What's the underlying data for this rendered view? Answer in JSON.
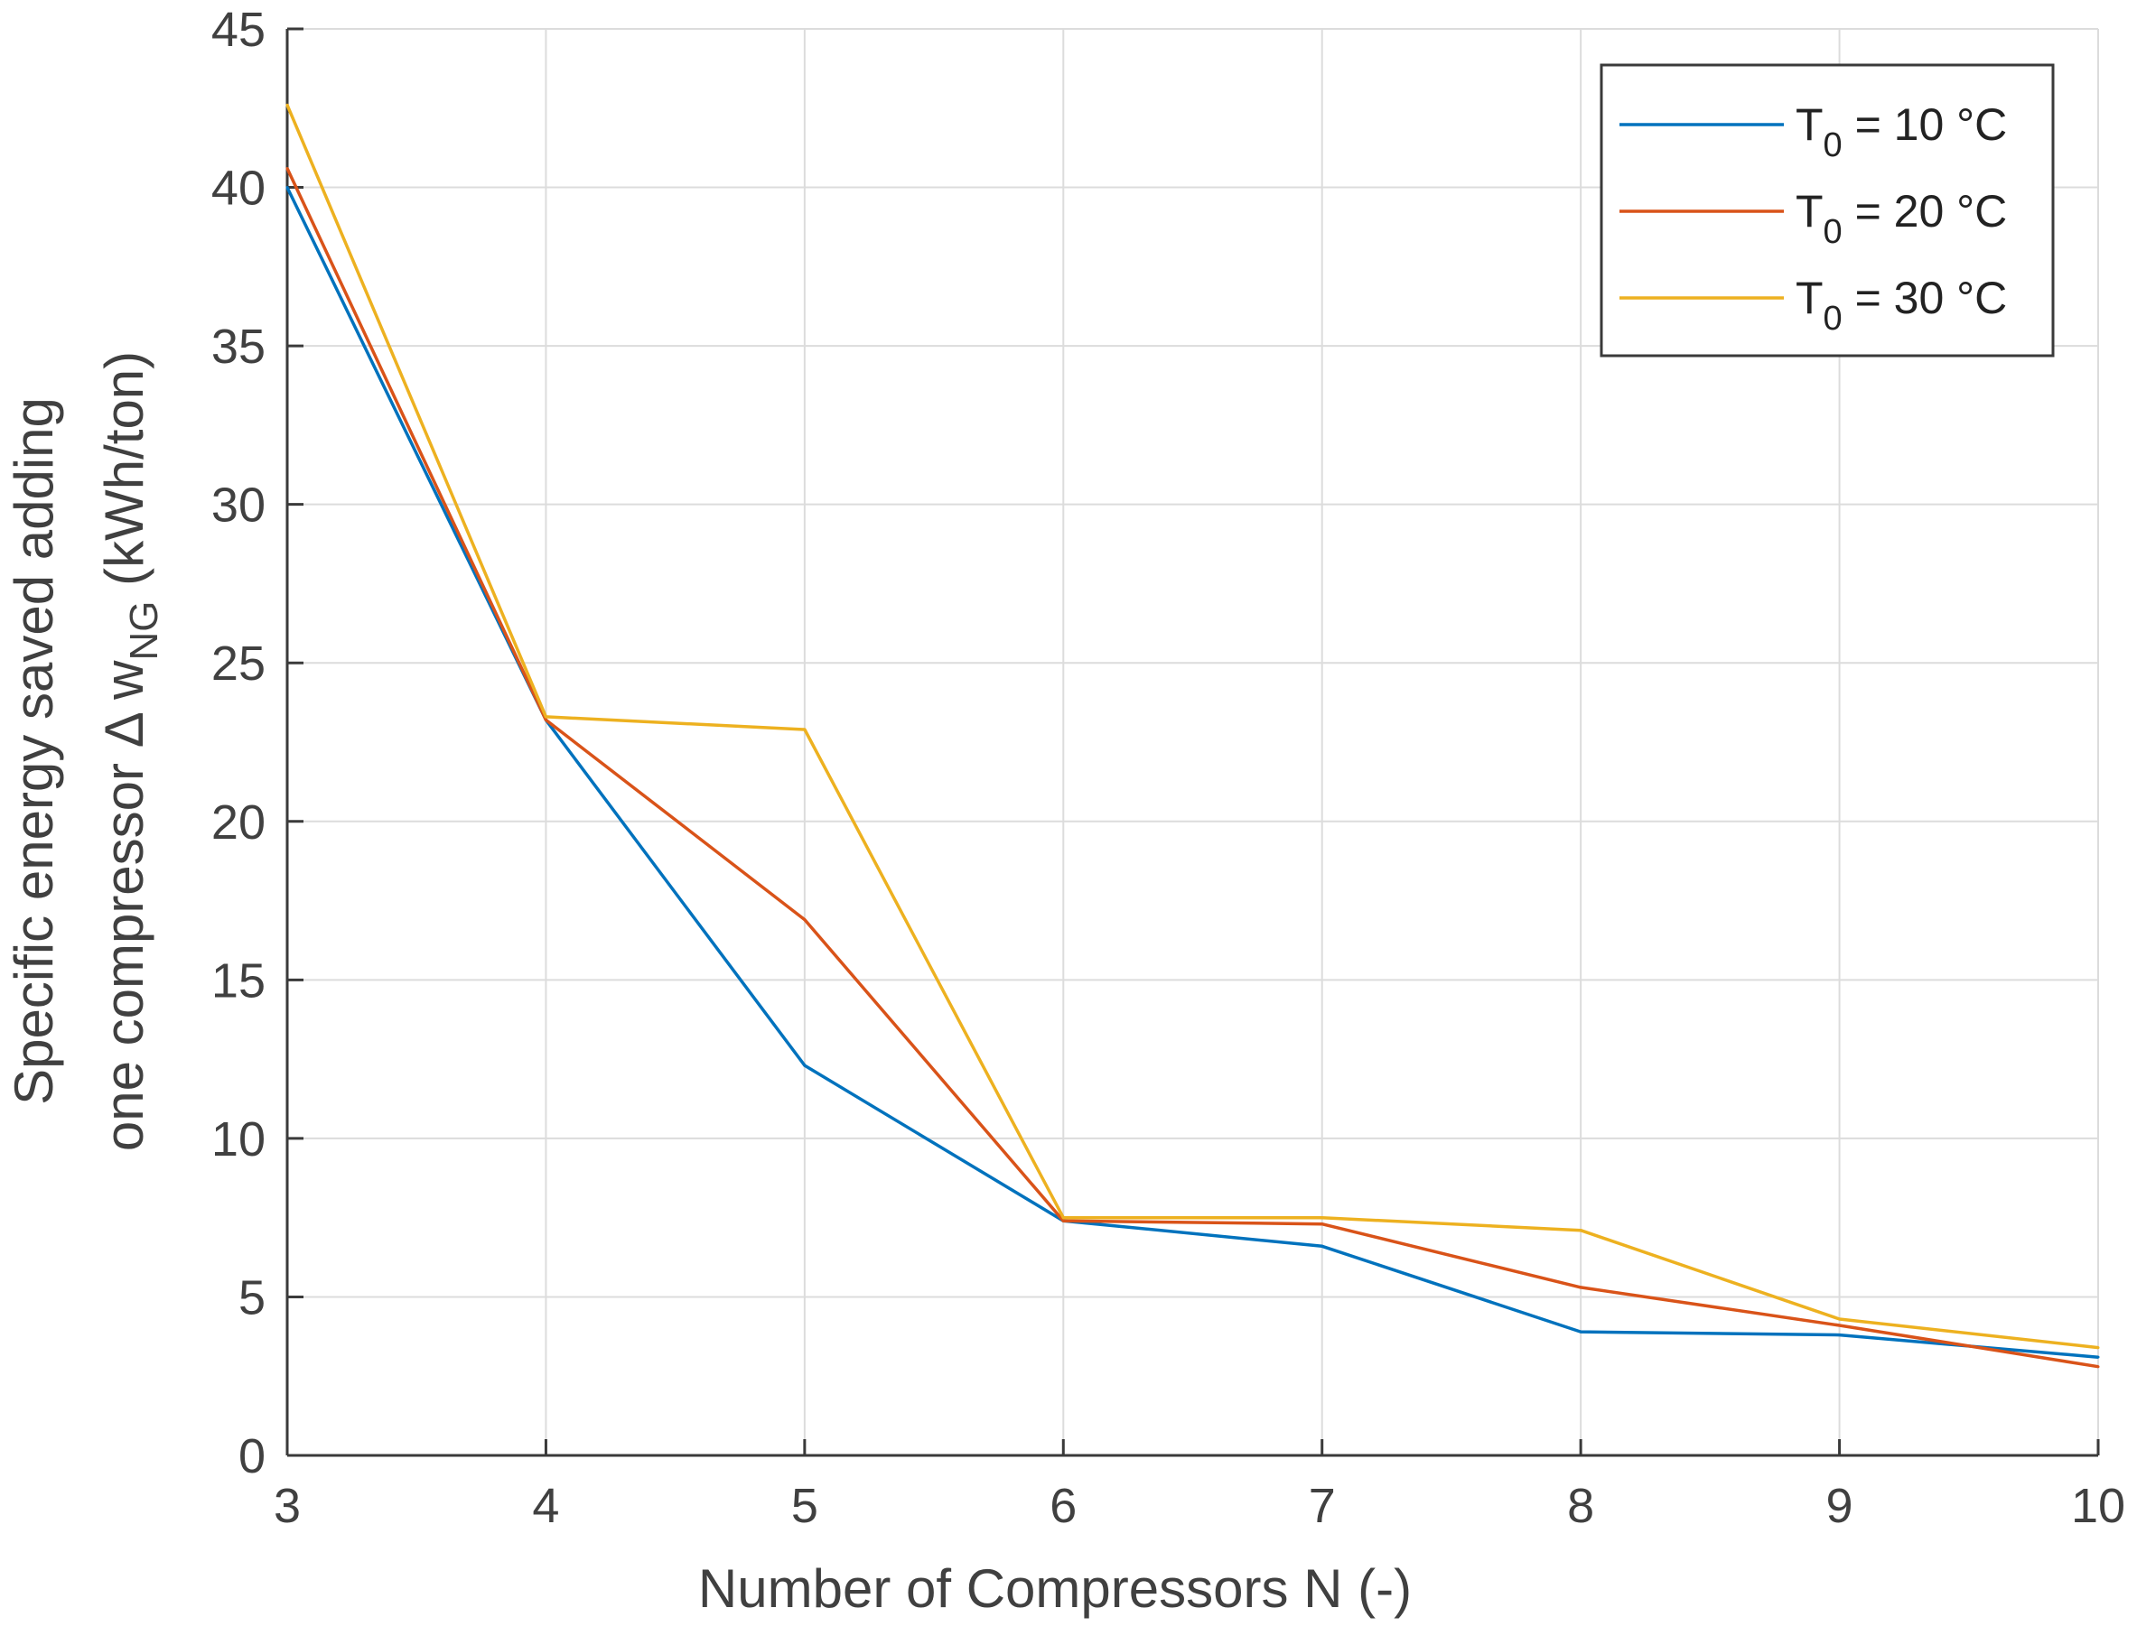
{
  "chart_data": {
    "type": "line",
    "title": "",
    "xlabel": "Number of Compressors N (-)",
    "ylabel_line1": "Specific energy saved adding",
    "ylabel_line2_prefix": "one compressor Δ w",
    "ylabel_line2_sub": "NG",
    "ylabel_line2_suffix": " (kWh/ton)",
    "x": [
      3,
      4,
      5,
      6,
      7,
      8,
      9,
      10
    ],
    "xlim": [
      3,
      10
    ],
    "ylim": [
      0,
      45
    ],
    "xticks": [
      "3",
      "4",
      "5",
      "6",
      "7",
      "8",
      "9",
      "10"
    ],
    "yticks": [
      "0",
      "5",
      "10",
      "15",
      "20",
      "25",
      "30",
      "35",
      "40",
      "45"
    ],
    "grid": true,
    "legend_position": "top-right",
    "series": [
      {
        "name": "T0 = 10 °C",
        "label_main": "T",
        "label_sub": "0",
        "label_rest": " = 10 °C",
        "color": "#0072bd",
        "values": [
          40.0,
          23.2,
          12.3,
          7.4,
          6.6,
          3.9,
          3.8,
          3.1
        ]
      },
      {
        "name": "T0 = 20 °C",
        "label_main": "T",
        "label_sub": "0",
        "label_rest": " = 20 °C",
        "color": "#d95319",
        "values": [
          40.6,
          23.2,
          16.9,
          7.4,
          7.3,
          5.3,
          4.1,
          2.8
        ]
      },
      {
        "name": "T0 = 30 °C",
        "label_main": "T",
        "label_sub": "0",
        "label_rest": " = 30 °C",
        "color": "#edb120",
        "values": [
          42.6,
          23.3,
          22.9,
          7.5,
          7.5,
          7.1,
          4.3,
          3.4
        ]
      }
    ]
  }
}
